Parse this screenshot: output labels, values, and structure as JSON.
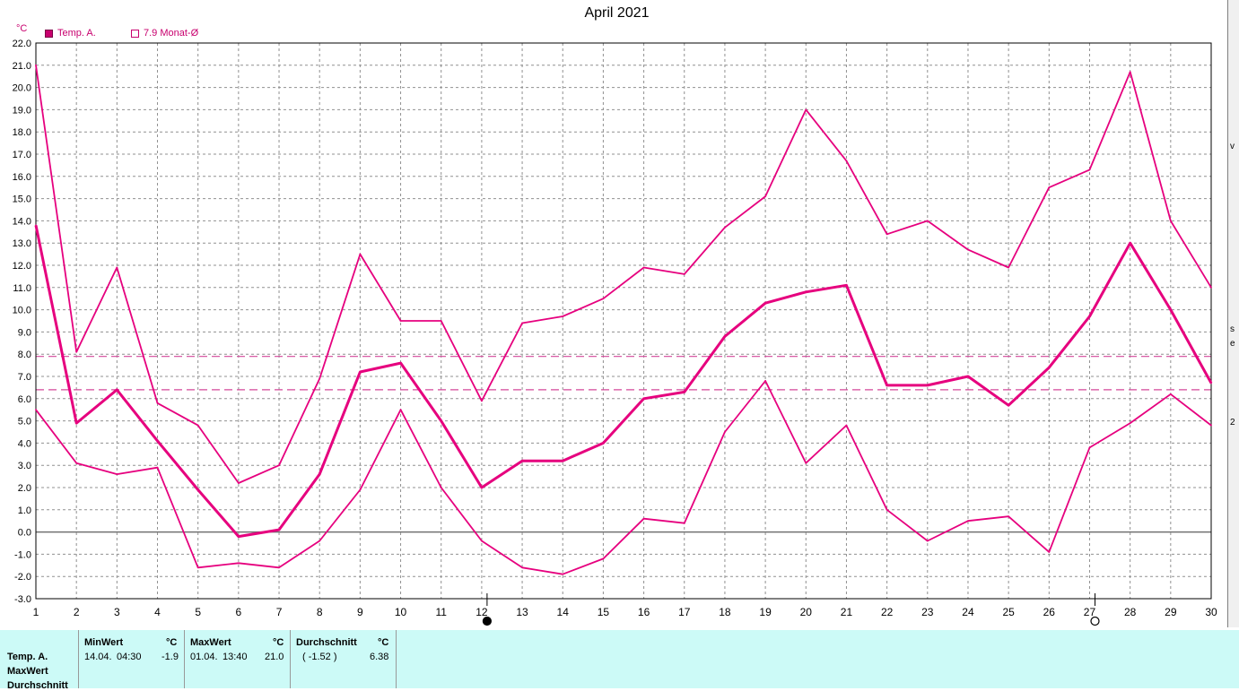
{
  "chart_data": {
    "type": "line",
    "title": "April 2021",
    "unit": "°C",
    "legend": [
      {
        "label": "Temp. A.",
        "style": "filled"
      },
      {
        "label": "7.9 Monat-Ø",
        "style": "outline"
      }
    ],
    "ylim": [
      -3.0,
      22.0
    ],
    "yticks": [
      "22.0",
      "21.0",
      "20.0",
      "19.0",
      "18.0",
      "17.0",
      "16.0",
      "15.0",
      "14.0",
      "13.0",
      "12.0",
      "11.0",
      "10.0",
      "9.0",
      "8.0",
      "7.0",
      "6.0",
      "5.0",
      "4.0",
      "3.0",
      "2.0",
      "1.0",
      "0.0",
      "-1.0",
      "-2.0",
      "-3.0"
    ],
    "x": [
      1,
      2,
      3,
      4,
      5,
      6,
      7,
      8,
      9,
      10,
      11,
      12,
      13,
      14,
      15,
      16,
      17,
      18,
      19,
      20,
      21,
      22,
      23,
      24,
      25,
      26,
      27,
      28,
      29,
      30
    ],
    "xticks": [
      "1",
      "2",
      "3",
      "4",
      "5",
      "6",
      "7",
      "8",
      "9",
      "10",
      "11",
      "12",
      "13",
      "14",
      "15",
      "16",
      "17",
      "18",
      "19",
      "20",
      "21",
      "22",
      "23",
      "24",
      "25",
      "26",
      "27",
      "28",
      "29",
      "30"
    ],
    "series": [
      {
        "role": "max",
        "values": [
          21.0,
          8.1,
          11.9,
          5.8,
          4.8,
          2.2,
          3.0,
          6.9,
          12.5,
          9.5,
          9.5,
          5.9,
          9.4,
          9.7,
          10.5,
          11.9,
          11.6,
          13.7,
          15.1,
          19.0,
          16.7,
          13.4,
          14.0,
          12.7,
          11.9,
          15.5,
          16.3,
          20.7,
          14.0,
          11.0
        ]
      },
      {
        "role": "avg",
        "values": [
          13.8,
          4.9,
          6.4,
          4.1,
          1.9,
          -0.2,
          0.1,
          2.6,
          7.2,
          7.6,
          5.0,
          2.0,
          3.2,
          3.2,
          4.0,
          6.0,
          6.3,
          8.8,
          10.3,
          10.8,
          11.1,
          6.6,
          6.6,
          7.0,
          5.7,
          7.4,
          9.7,
          13.0,
          10.0,
          6.7
        ]
      },
      {
        "role": "min",
        "values": [
          5.5,
          3.1,
          2.6,
          2.9,
          -1.6,
          -1.4,
          -1.6,
          -0.4,
          1.9,
          5.5,
          2.0,
          -0.4,
          -1.6,
          -1.9,
          -1.2,
          0.6,
          0.4,
          4.5,
          6.8,
          3.1,
          4.8,
          1.0,
          -0.4,
          0.5,
          0.7,
          -0.9,
          3.8,
          4.9,
          6.2,
          4.8
        ]
      }
    ],
    "reference_lines": [
      7.9,
      6.4
    ],
    "moon_markers": [
      {
        "day": 12,
        "phase": "new"
      },
      {
        "day": 27,
        "phase": "full"
      }
    ],
    "grid": true
  },
  "colors": {
    "series": "#e6007e",
    "reference": "#d4489a",
    "grid": "#909090",
    "zero_line": "#707070",
    "axis": "#000000",
    "panel_bg": "#ccfaf7"
  },
  "stats_panel": {
    "row_labels": [
      "Temp. A.",
      "MaxWert",
      "Durchschnitt"
    ],
    "min": {
      "header": "MinWert",
      "unit": "°C",
      "date": "14.04.",
      "time": "04:30",
      "value": "-1.9"
    },
    "max": {
      "header": "MaxWert",
      "unit": "°C",
      "date": "01.04.",
      "time": "13:40",
      "value": "21.0"
    },
    "avg": {
      "header": "Durchschnitt",
      "unit": "°C",
      "extra": "( -1.52 )",
      "value": "6.38"
    }
  },
  "side_fragments": [
    "v",
    "s",
    "e",
    "2"
  ]
}
